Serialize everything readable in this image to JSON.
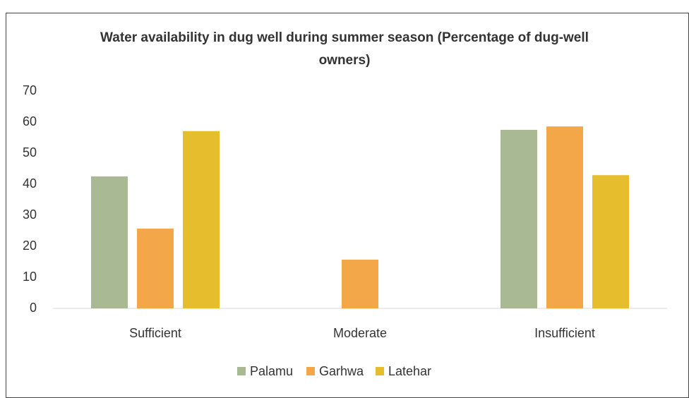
{
  "chart_data": {
    "type": "bar",
    "title": "Water availability in dug well during summer season (Percentage of dug-well owners)",
    "categories": [
      "Sufficient",
      "Moderate",
      "Insufficient"
    ],
    "series": [
      {
        "name": "Palamu",
        "color": "#a9b993",
        "values": [
          42.5,
          0,
          57.5
        ]
      },
      {
        "name": "Garhwa",
        "color": "#f4a748",
        "values": [
          25.7,
          15.7,
          58.6
        ]
      },
      {
        "name": "Latehar",
        "color": "#e6bd2c",
        "values": [
          57.1,
          0,
          42.9
        ]
      }
    ],
    "ylim": [
      0,
      70
    ],
    "yticks": [
      0,
      10,
      20,
      30,
      40,
      50,
      60,
      70
    ],
    "grid": false
  }
}
